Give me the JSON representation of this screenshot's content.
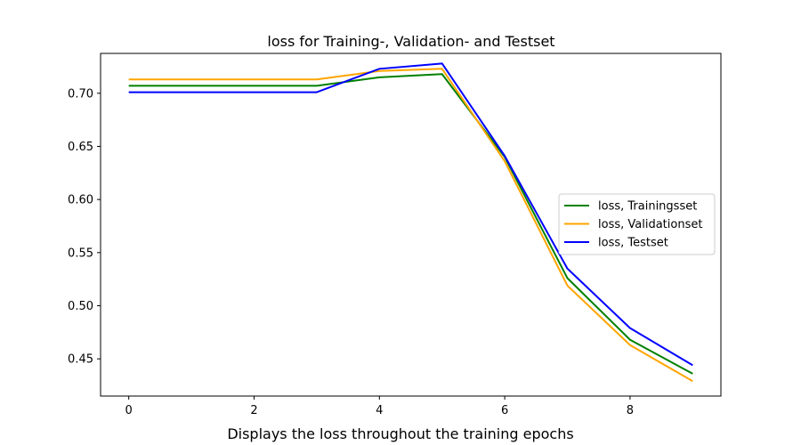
{
  "chart_data": {
    "type": "line",
    "title": "loss for Training-, Validation- and Testset",
    "caption": "Displays the loss throughout the training epochs",
    "xlabel": "",
    "ylabel": "",
    "xlim": [
      -0.45,
      9.45
    ],
    "ylim": [
      0.415,
      0.7375
    ],
    "xticks": [
      0,
      2,
      4,
      6,
      8
    ],
    "xtick_labels": [
      "0",
      "2",
      "4",
      "6",
      "8"
    ],
    "yticks": [
      0.45,
      0.5,
      0.55,
      0.6,
      0.65,
      0.7
    ],
    "ytick_labels": [
      "0.45",
      "0.50",
      "0.55",
      "0.60",
      "0.65",
      "0.70"
    ],
    "grid": false,
    "legend_position": "center-right",
    "x": [
      0,
      1,
      2,
      3,
      4,
      5,
      6,
      7,
      8,
      9
    ],
    "series": [
      {
        "name": "loss, Trainingsset",
        "color": "#008000",
        "values": [
          0.707,
          0.707,
          0.707,
          0.707,
          0.715,
          0.718,
          0.64,
          0.526,
          0.468,
          0.436
        ]
      },
      {
        "name": "loss, Validationset",
        "color": "#ffa500",
        "values": [
          0.713,
          0.713,
          0.713,
          0.713,
          0.721,
          0.723,
          0.636,
          0.519,
          0.463,
          0.429
        ]
      },
      {
        "name": "loss, Testset",
        "color": "#0000ff",
        "values": [
          0.701,
          0.701,
          0.701,
          0.701,
          0.723,
          0.728,
          0.641,
          0.535,
          0.479,
          0.444
        ]
      }
    ]
  }
}
